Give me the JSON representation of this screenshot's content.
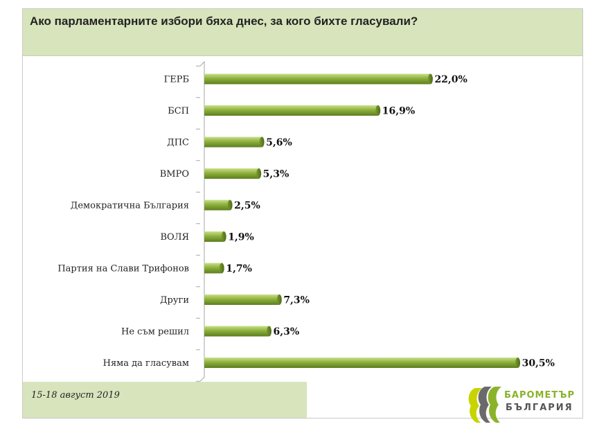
{
  "title": "Ако парламентарните избори бяха днес, за кого бихте гласували?",
  "date_text": "15-18 август 2019",
  "logo": {
    "line1": "БАРОМЕТЪР",
    "line2": "БЪЛГАРИЯ"
  },
  "colors": {
    "bar": "#8db13c",
    "bar_light": "#c2dc7a",
    "bar_dark": "#5e7d1f",
    "header_bg": "#d8e4bc"
  },
  "chart_data": {
    "type": "bar",
    "orientation": "horizontal",
    "categories": [
      "ГЕРБ",
      "БСП",
      "ДПС",
      "ВМРО",
      "Демократична България",
      "ВОЛЯ",
      "Партия на Слави Трифонов",
      "Други",
      "Не съм решил",
      "Няма да гласувам"
    ],
    "values": [
      22.0,
      16.9,
      5.6,
      5.3,
      2.5,
      1.9,
      1.7,
      7.3,
      6.3,
      30.5
    ],
    "value_labels": [
      "22,0%",
      "16,9%",
      "5,6%",
      "5,3%",
      "2,5%",
      "1,9%",
      "1,7%",
      "7,3%",
      "6,3%",
      "30,5%"
    ],
    "xlim": [
      0,
      31
    ],
    "grid": false
  }
}
